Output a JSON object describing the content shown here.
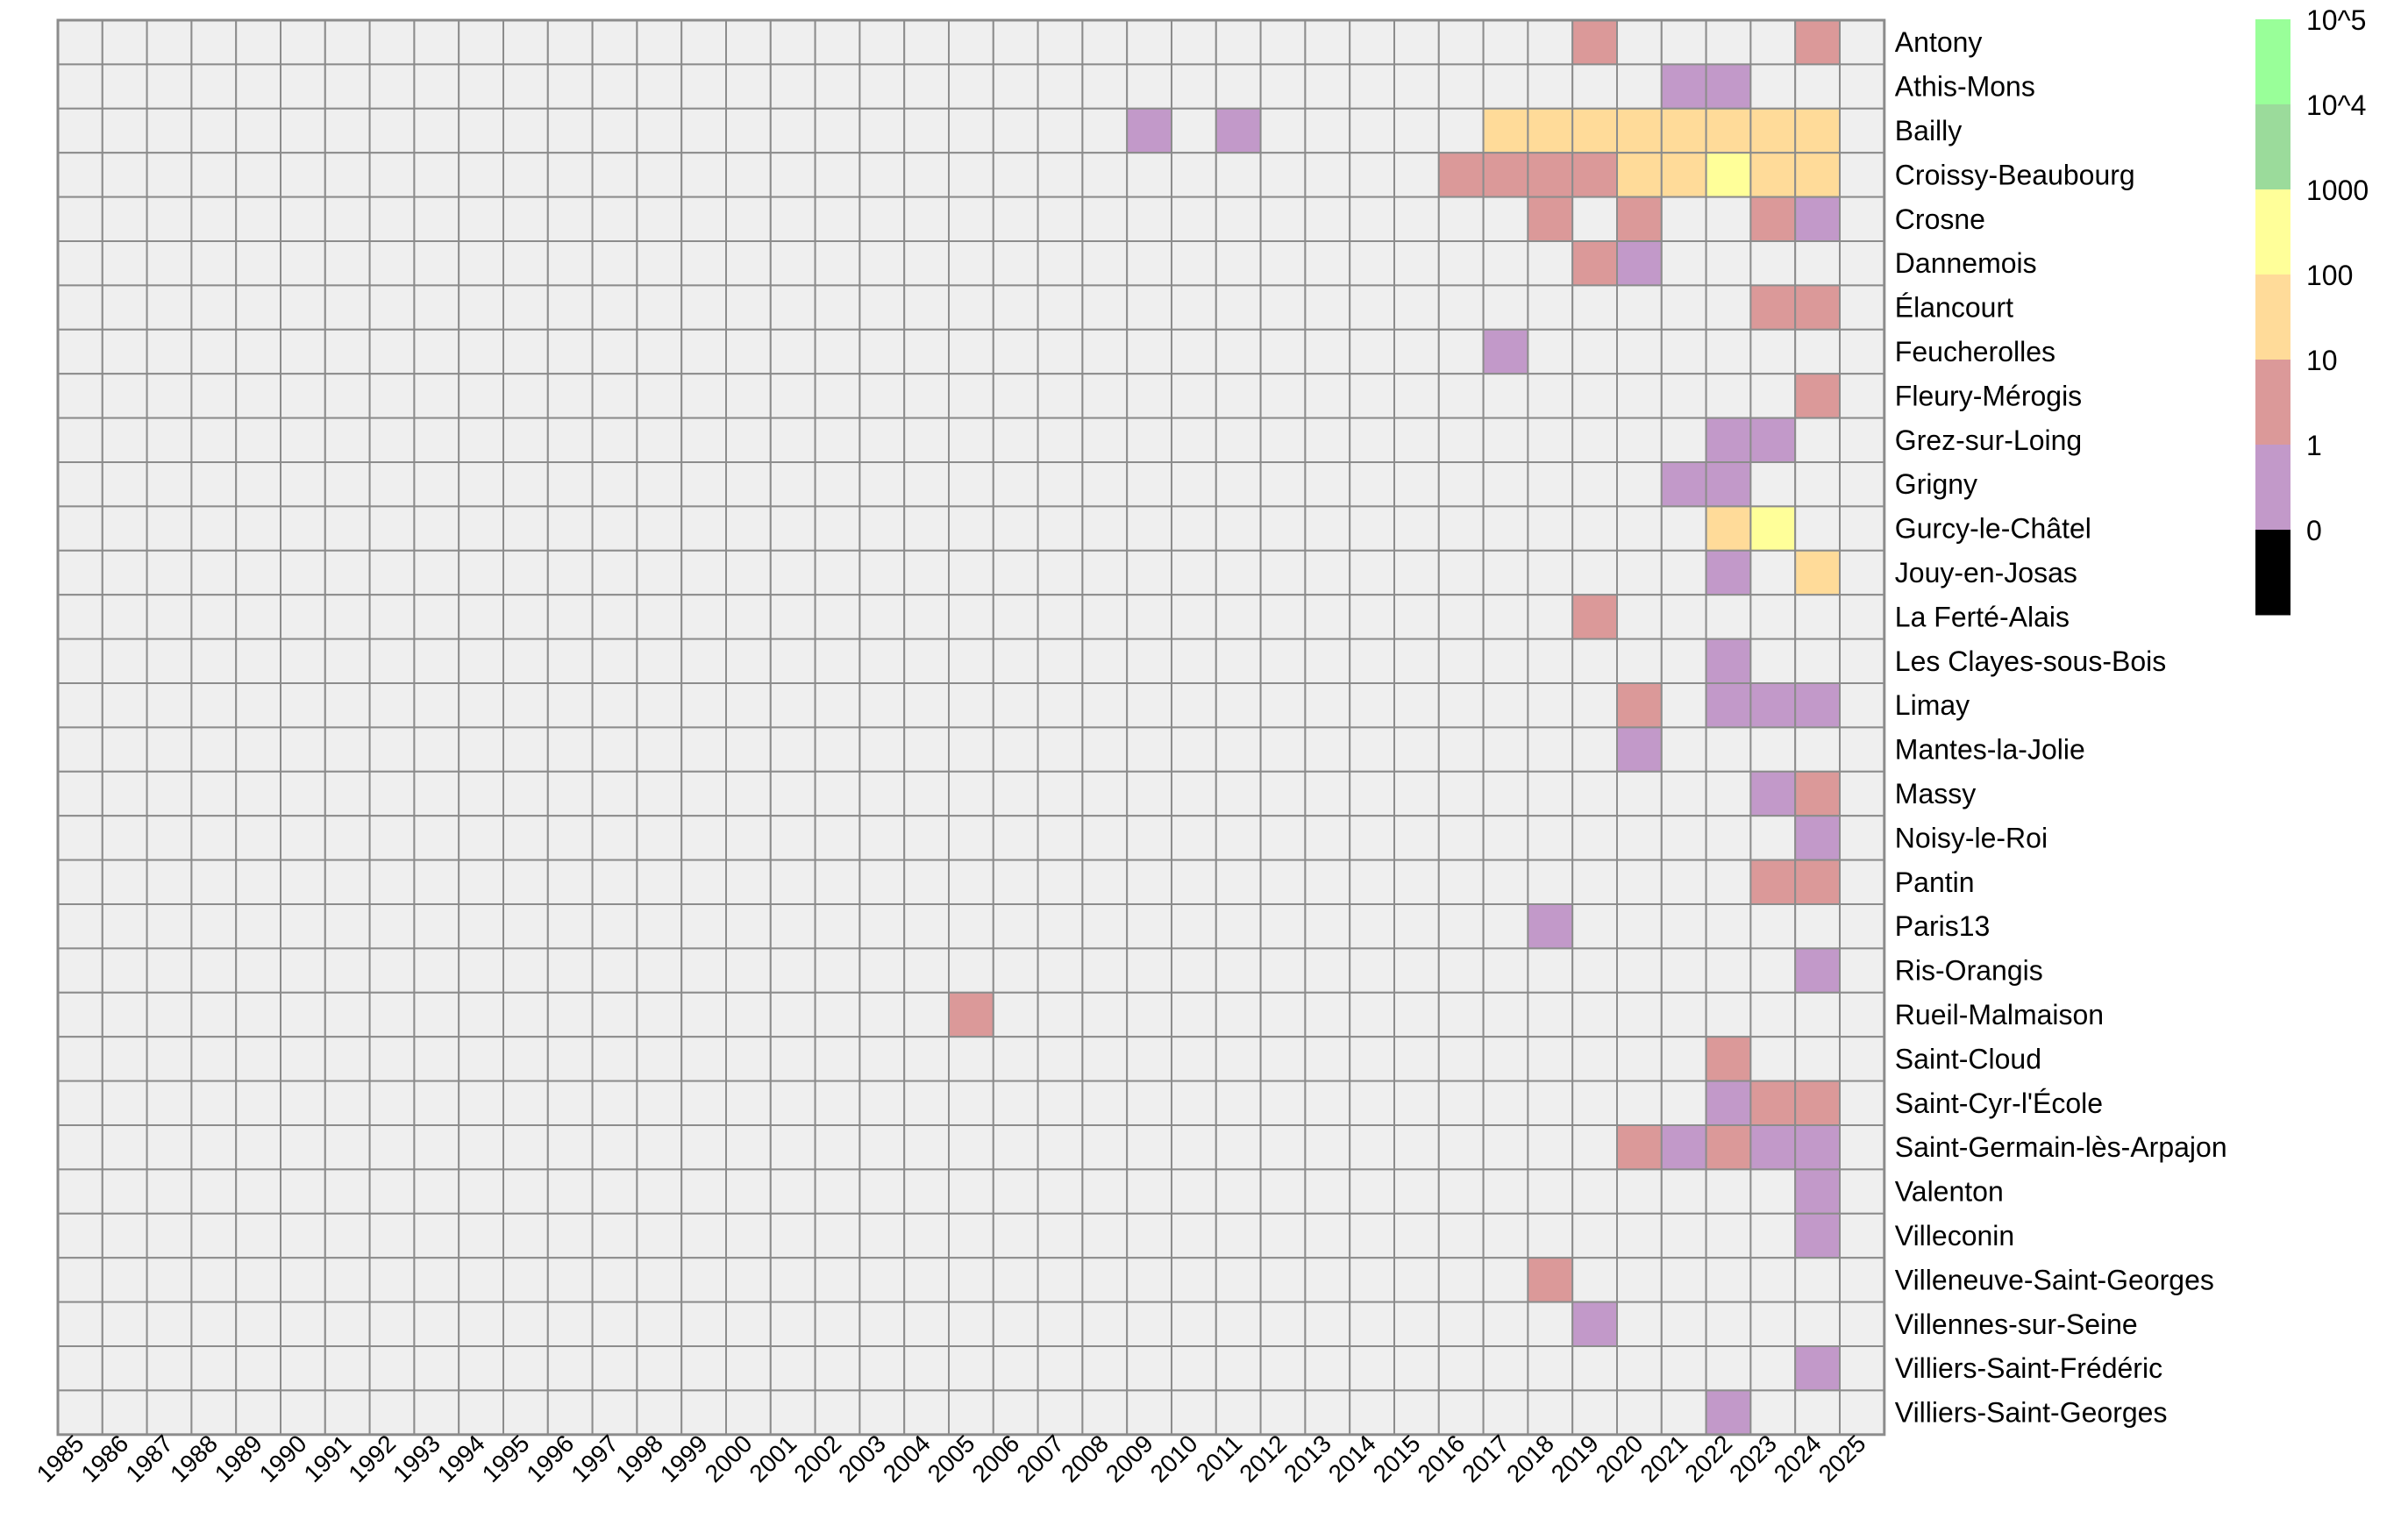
{
  "chart_data": {
    "type": "heatmap",
    "title": "",
    "xlabel": "",
    "ylabel": "",
    "grid": true,
    "legend_placement": "right-top",
    "x": [
      "1985",
      "1986",
      "1987",
      "1988",
      "1989",
      "1990",
      "1991",
      "1992",
      "1993",
      "1994",
      "1995",
      "1996",
      "1997",
      "1998",
      "1999",
      "2000",
      "2001",
      "2002",
      "2003",
      "2004",
      "2005",
      "2006",
      "2007",
      "2008",
      "2009",
      "2010",
      "2011",
      "2012",
      "2013",
      "2014",
      "2015",
      "2016",
      "2017",
      "2018",
      "2019",
      "2020",
      "2021",
      "2022",
      "2023",
      "2024",
      "2025"
    ],
    "y": [
      "Antony",
      "Athis-Mons",
      "Bailly",
      "Croissy-Beaubourg",
      "Crosne",
      "Dannemois",
      "Élancourt",
      "Feucherolles",
      "Fleury-Mérogis",
      "Grez-sur-Loing",
      "Grigny",
      "Gurcy-le-Châtel",
      "Jouy-en-Josas",
      "La Ferté-Alais",
      "Les Clayes-sous-Bois",
      "Limay",
      "Mantes-la-Jolie",
      "Massy",
      "Noisy-le-Roi",
      "Pantin",
      "Paris13",
      "Ris-Orangis",
      "Rueil-Malmaison",
      "Saint-Cloud",
      "Saint-Cyr-l'École",
      "Saint-Germain-lès-Arpajon",
      "Valenton",
      "Villeconin",
      "Villeneuve-Saint-Georges",
      "Villennes-sur-Seine",
      "Villiers-Saint-Frédéric",
      "Villiers-Saint-Georges"
    ],
    "value_bins": [
      "0",
      "1",
      "10",
      "100",
      "1000",
      "10^4",
      "10^5"
    ],
    "empty_color": "#efefef",
    "grid_color": "#8c8c8c",
    "legend": [
      {
        "label": "10^5",
        "color": "#99ff99"
      },
      {
        "label": "10^4",
        "color": "#9bdb9b"
      },
      {
        "label": "1000",
        "color": "#ffff99"
      },
      {
        "label": "100",
        "color": "#ffdb99"
      },
      {
        "label": "10",
        "color": "#db9999"
      },
      {
        "label": "1",
        "color": "#c299c9"
      },
      {
        "label": "0",
        "color": "#000000"
      }
    ],
    "cells": [
      {
        "row": "Antony",
        "year": "2019",
        "bin": "10"
      },
      {
        "row": "Antony",
        "year": "2024",
        "bin": "10"
      },
      {
        "row": "Athis-Mons",
        "year": "2021",
        "bin": "1"
      },
      {
        "row": "Athis-Mons",
        "year": "2022",
        "bin": "1"
      },
      {
        "row": "Bailly",
        "year": "2009",
        "bin": "1"
      },
      {
        "row": "Bailly",
        "year": "2011",
        "bin": "1"
      },
      {
        "row": "Bailly",
        "year": "2017",
        "bin": "100"
      },
      {
        "row": "Bailly",
        "year": "2018",
        "bin": "100"
      },
      {
        "row": "Bailly",
        "year": "2019",
        "bin": "100"
      },
      {
        "row": "Bailly",
        "year": "2020",
        "bin": "100"
      },
      {
        "row": "Bailly",
        "year": "2021",
        "bin": "100"
      },
      {
        "row": "Bailly",
        "year": "2022",
        "bin": "100"
      },
      {
        "row": "Bailly",
        "year": "2023",
        "bin": "100"
      },
      {
        "row": "Bailly",
        "year": "2024",
        "bin": "100"
      },
      {
        "row": "Croissy-Beaubourg",
        "year": "2016",
        "bin": "10"
      },
      {
        "row": "Croissy-Beaubourg",
        "year": "2017",
        "bin": "10"
      },
      {
        "row": "Croissy-Beaubourg",
        "year": "2018",
        "bin": "10"
      },
      {
        "row": "Croissy-Beaubourg",
        "year": "2019",
        "bin": "10"
      },
      {
        "row": "Croissy-Beaubourg",
        "year": "2020",
        "bin": "100"
      },
      {
        "row": "Croissy-Beaubourg",
        "year": "2021",
        "bin": "100"
      },
      {
        "row": "Croissy-Beaubourg",
        "year": "2022",
        "bin": "1000"
      },
      {
        "row": "Croissy-Beaubourg",
        "year": "2023",
        "bin": "100"
      },
      {
        "row": "Croissy-Beaubourg",
        "year": "2024",
        "bin": "100"
      },
      {
        "row": "Crosne",
        "year": "2018",
        "bin": "10"
      },
      {
        "row": "Crosne",
        "year": "2020",
        "bin": "10"
      },
      {
        "row": "Crosne",
        "year": "2023",
        "bin": "10"
      },
      {
        "row": "Crosne",
        "year": "2024",
        "bin": "1"
      },
      {
        "row": "Dannemois",
        "year": "2019",
        "bin": "10"
      },
      {
        "row": "Dannemois",
        "year": "2020",
        "bin": "1"
      },
      {
        "row": "Élancourt",
        "year": "2023",
        "bin": "10"
      },
      {
        "row": "Élancourt",
        "year": "2024",
        "bin": "10"
      },
      {
        "row": "Feucherolles",
        "year": "2017",
        "bin": "1"
      },
      {
        "row": "Fleury-Mérogis",
        "year": "2024",
        "bin": "10"
      },
      {
        "row": "Grez-sur-Loing",
        "year": "2022",
        "bin": "1"
      },
      {
        "row": "Grez-sur-Loing",
        "year": "2023",
        "bin": "1"
      },
      {
        "row": "Grigny",
        "year": "2021",
        "bin": "1"
      },
      {
        "row": "Grigny",
        "year": "2022",
        "bin": "1"
      },
      {
        "row": "Gurcy-le-Châtel",
        "year": "2022",
        "bin": "100"
      },
      {
        "row": "Gurcy-le-Châtel",
        "year": "2023",
        "bin": "1000"
      },
      {
        "row": "Jouy-en-Josas",
        "year": "2022",
        "bin": "1"
      },
      {
        "row": "Jouy-en-Josas",
        "year": "2024",
        "bin": "100"
      },
      {
        "row": "La Ferté-Alais",
        "year": "2019",
        "bin": "10"
      },
      {
        "row": "Les Clayes-sous-Bois",
        "year": "2022",
        "bin": "1"
      },
      {
        "row": "Limay",
        "year": "2020",
        "bin": "10"
      },
      {
        "row": "Limay",
        "year": "2022",
        "bin": "1"
      },
      {
        "row": "Limay",
        "year": "2023",
        "bin": "1"
      },
      {
        "row": "Limay",
        "year": "2024",
        "bin": "1"
      },
      {
        "row": "Mantes-la-Jolie",
        "year": "2020",
        "bin": "1"
      },
      {
        "row": "Massy",
        "year": "2023",
        "bin": "1"
      },
      {
        "row": "Massy",
        "year": "2024",
        "bin": "10"
      },
      {
        "row": "Noisy-le-Roi",
        "year": "2024",
        "bin": "1"
      },
      {
        "row": "Pantin",
        "year": "2023",
        "bin": "10"
      },
      {
        "row": "Pantin",
        "year": "2024",
        "bin": "10"
      },
      {
        "row": "Paris13",
        "year": "2018",
        "bin": "1"
      },
      {
        "row": "Ris-Orangis",
        "year": "2024",
        "bin": "1"
      },
      {
        "row": "Rueil-Malmaison",
        "year": "2005",
        "bin": "10"
      },
      {
        "row": "Saint-Cloud",
        "year": "2022",
        "bin": "10"
      },
      {
        "row": "Saint-Cyr-l'École",
        "year": "2022",
        "bin": "1"
      },
      {
        "row": "Saint-Cyr-l'École",
        "year": "2023",
        "bin": "10"
      },
      {
        "row": "Saint-Cyr-l'École",
        "year": "2024",
        "bin": "10"
      },
      {
        "row": "Saint-Germain-lès-Arpajon",
        "year": "2020",
        "bin": "10"
      },
      {
        "row": "Saint-Germain-lès-Arpajon",
        "year": "2021",
        "bin": "1"
      },
      {
        "row": "Saint-Germain-lès-Arpajon",
        "year": "2022",
        "bin": "10"
      },
      {
        "row": "Saint-Germain-lès-Arpajon",
        "year": "2023",
        "bin": "1"
      },
      {
        "row": "Saint-Germain-lès-Arpajon",
        "year": "2024",
        "bin": "1"
      },
      {
        "row": "Valenton",
        "year": "2024",
        "bin": "1"
      },
      {
        "row": "Villeconin",
        "year": "2024",
        "bin": "1"
      },
      {
        "row": "Villeneuve-Saint-Georges",
        "year": "2018",
        "bin": "10"
      },
      {
        "row": "Villennes-sur-Seine",
        "year": "2019",
        "bin": "1"
      },
      {
        "row": "Villiers-Saint-Frédéric",
        "year": "2024",
        "bin": "1"
      },
      {
        "row": "Villiers-Saint-Georges",
        "year": "2022",
        "bin": "1"
      }
    ]
  }
}
